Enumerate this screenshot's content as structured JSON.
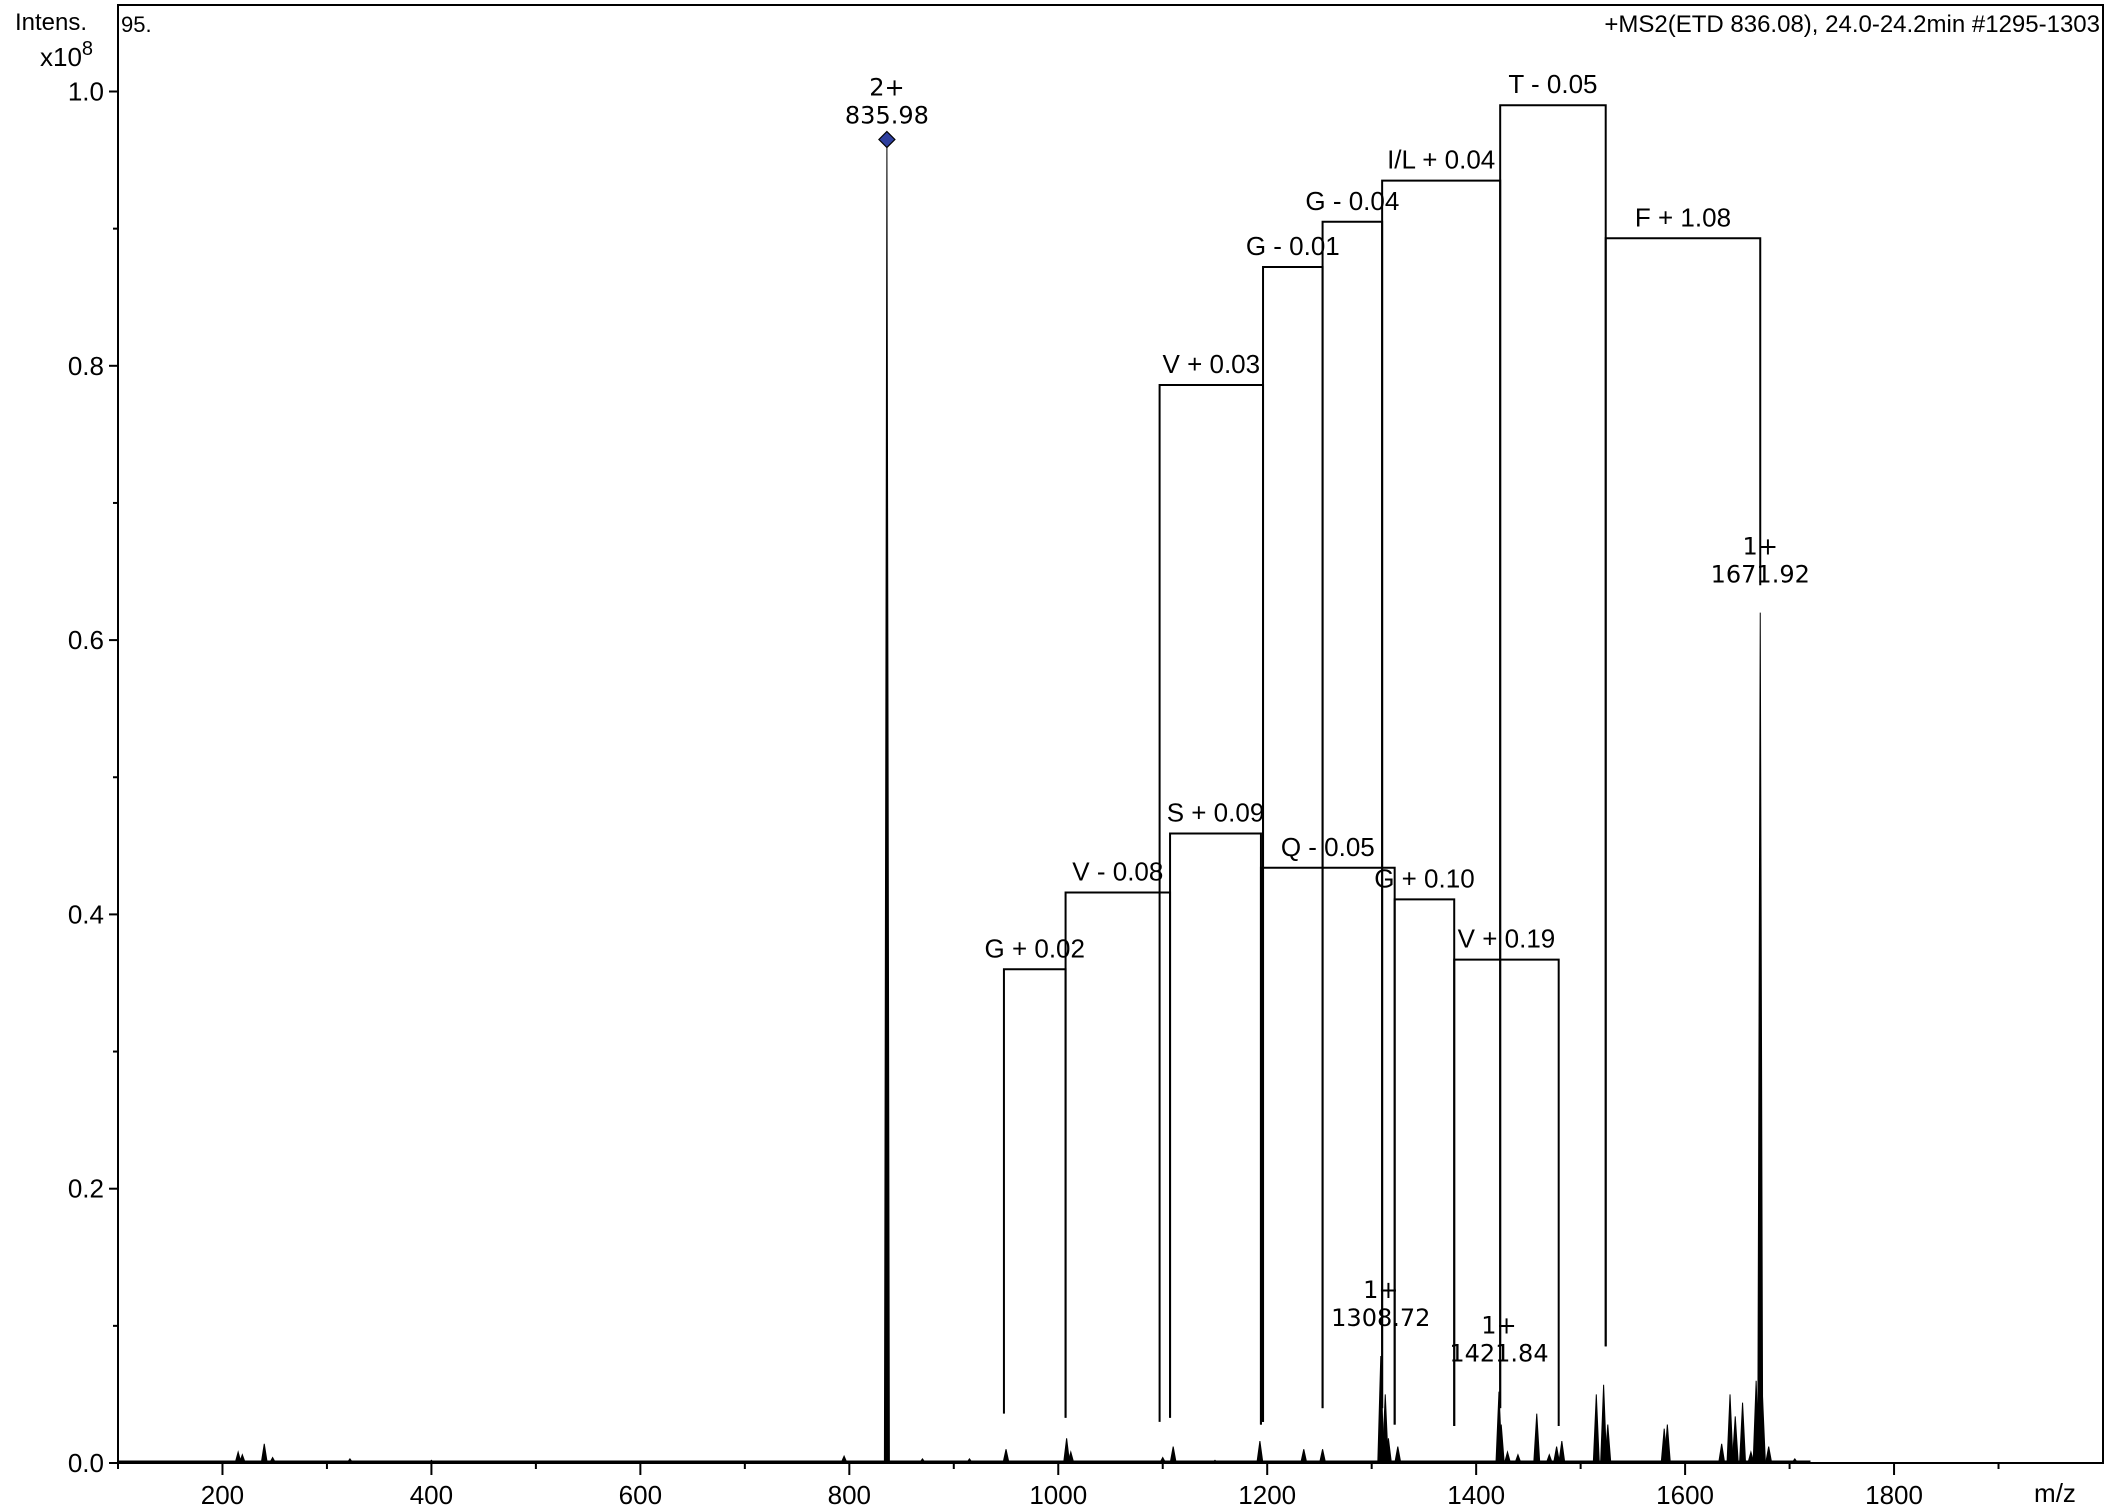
{
  "chart_data": {
    "type": "bar",
    "spectrum_label": "95.",
    "header": "+MS2(ETD 836.08), 24.0-24.2min #1295-1303",
    "ylabel": "Intens.",
    "yscale": "x10",
    "yscale_exp": "8",
    "xlabel": "m/z",
    "xlim": [
      100,
      2000
    ],
    "ylim": [
      0,
      1.0
    ],
    "x_ticks": [
      200,
      400,
      600,
      800,
      1000,
      1200,
      1400,
      1600,
      1800
    ],
    "x_tick_labels": [
      "200",
      "400",
      "600",
      "800",
      "1000",
      "1200",
      "1400",
      "1600",
      "1800"
    ],
    "y_ticks": [
      0.0,
      0.2,
      0.4,
      0.6,
      0.8,
      1.0
    ],
    "y_tick_labels": [
      "0.0",
      "0.2",
      "0.4",
      "0.6",
      "0.8",
      "1.0"
    ],
    "colors": {
      "axis": "#000000",
      "peak": "#000000",
      "marker": "#2e3f9e",
      "background": "#ffffff"
    },
    "marker_shape": "diamond",
    "peaks": [
      [
        215,
        0.008
      ],
      [
        219,
        0.006
      ],
      [
        240,
        0.014
      ],
      [
        248,
        0.004
      ],
      [
        322,
        0.003
      ],
      [
        400,
        0.002
      ],
      [
        795,
        0.005
      ],
      [
        835.98,
        0.965
      ],
      [
        870,
        0.003
      ],
      [
        915,
        0.003
      ],
      [
        950,
        0.01
      ],
      [
        1008,
        0.018
      ],
      [
        1012,
        0.008
      ],
      [
        1100,
        0.004
      ],
      [
        1110,
        0.012
      ],
      [
        1150,
        0.002
      ],
      [
        1193,
        0.016
      ],
      [
        1235,
        0.01
      ],
      [
        1253,
        0.01
      ],
      [
        1308.72,
        0.078
      ],
      [
        1313,
        0.05
      ],
      [
        1316,
        0.018
      ],
      [
        1325,
        0.012
      ],
      [
        1421.84,
        0.052
      ],
      [
        1424,
        0.028
      ],
      [
        1430,
        0.008
      ],
      [
        1440,
        0.006
      ],
      [
        1458,
        0.036
      ],
      [
        1470,
        0.006
      ],
      [
        1477,
        0.012
      ],
      [
        1482,
        0.016
      ],
      [
        1515,
        0.05
      ],
      [
        1522,
        0.057
      ],
      [
        1526,
        0.028
      ],
      [
        1580,
        0.025
      ],
      [
        1583,
        0.028
      ],
      [
        1635,
        0.014
      ],
      [
        1643,
        0.05
      ],
      [
        1648,
        0.034
      ],
      [
        1655,
        0.044
      ],
      [
        1663,
        0.008
      ],
      [
        1668,
        0.06
      ],
      [
        1671.92,
        0.62
      ],
      [
        1674,
        0.05
      ],
      [
        1680,
        0.012
      ],
      [
        1705,
        0.003
      ]
    ],
    "peak_labels": [
      {
        "mz": 835.98,
        "y": 0.965,
        "charge": "2+",
        "mass": "835.98",
        "marker": true
      },
      {
        "mz": 1308.72,
        "y": 0.078,
        "charge": "1+",
        "mass": "1308.72",
        "marker": false
      },
      {
        "mz": 1421.84,
        "y": 0.052,
        "charge": "1+",
        "mass": "1421.84",
        "marker": false
      },
      {
        "mz": 1671.92,
        "y": 0.62,
        "charge": "1+",
        "mass": "1671.92",
        "marker": false
      }
    ],
    "series": [
      {
        "ladder": [
          {
            "label": "V + 0.03",
            "x1": 1097,
            "x2": 1196,
            "y": 0.786,
            "y1_base": 0.03,
            "y2_base": 0.03
          },
          {
            "label": "G - 0.01",
            "x1": 1196,
            "x2": 1253,
            "y": 0.872,
            "y1_base": 0.03,
            "y2_base": 0.04
          },
          {
            "label": "G - 0.04",
            "x1": 1253,
            "x2": 1310,
            "y": 0.905,
            "y1_base": 0.04,
            "y2_base": 0.04
          },
          {
            "label": "I/L + 0.04",
            "x1": 1310,
            "x2": 1423,
            "y": 0.935,
            "y1_base": 0.04,
            "y2_base": 0.04
          },
          {
            "label": "T - 0.05",
            "x1": 1423,
            "x2": 1524,
            "y": 0.99,
            "y1_base": 0.04,
            "y2_base": 0.085
          },
          {
            "label": "F + 1.08",
            "x1": 1524,
            "x2": 1671.92,
            "y": 0.893,
            "y1_base": 0.085,
            "y2_base": 0.64
          }
        ]
      },
      {
        "ladder": [
          {
            "label": "G + 0.02",
            "x1": 948,
            "x2": 1007,
            "y": 0.36,
            "y1_base": 0.036,
            "y2_base": 0.033
          },
          {
            "label": "V - 0.08",
            "x1": 1007,
            "x2": 1107,
            "y": 0.416,
            "y1_base": 0.033,
            "y2_base": 0.033
          },
          {
            "label": "S + 0.09",
            "x1": 1107,
            "x2": 1194,
            "y": 0.459,
            "y1_base": 0.033,
            "y2_base": 0.028
          },
          {
            "label": "Q - 0.05",
            "x1": 1194,
            "x2": 1322,
            "y": 0.434,
            "y1_base": 0.028,
            "y2_base": 0.028
          },
          {
            "label": "G + 0.10",
            "x1": 1322,
            "x2": 1379,
            "y": 0.411,
            "y1_base": 0.028,
            "y2_base": 0.027
          },
          {
            "label": "V + 0.19",
            "x1": 1379,
            "x2": 1479,
            "y": 0.367,
            "y1_base": 0.027,
            "y2_base": 0.027
          }
        ]
      }
    ]
  }
}
